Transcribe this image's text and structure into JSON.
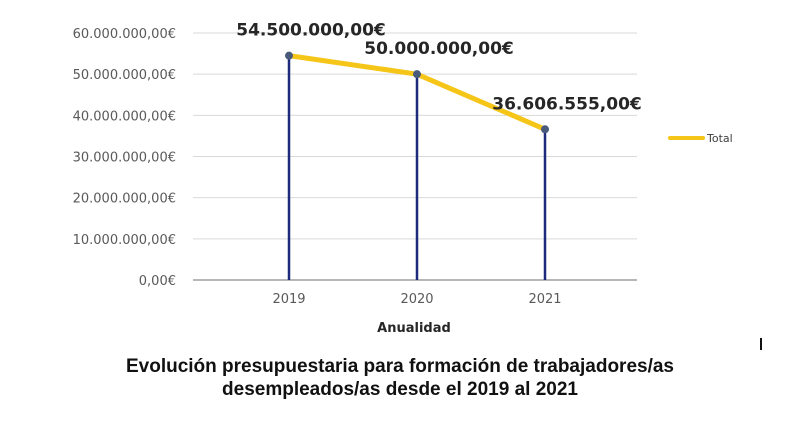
{
  "chart_data": {
    "type": "line",
    "categories": [
      "2019",
      "2020",
      "2021"
    ],
    "series": [
      {
        "name": "Total",
        "values": [
          54500000,
          50000000,
          36606555
        ]
      }
    ],
    "data_labels": [
      "54.500.000,00€",
      "50.000.000,00€",
      "36.606.555,00€"
    ],
    "y_ticks": [
      "0,00€",
      "10.000.000,00€",
      "20.000.000,00€",
      "30.000.000,00€",
      "40.000.000,00€",
      "50.000.000,00€",
      "60.000.000,00€"
    ],
    "ylim": [
      0,
      60000000
    ],
    "xlabel": "Anualidad",
    "ylabel": "",
    "grid": true,
    "drop_lines": true,
    "legend_position": "right",
    "colors": {
      "line": "#F5C518",
      "drop_line": "#1F2A7A",
      "marker": "#4A5A7A",
      "grid": "#D9D9D9"
    }
  },
  "caption": {
    "line1": "Evolución presupuestaria para formación de trabajadores/as",
    "line2": "desempleados/as desde el 2019 al 2021"
  }
}
